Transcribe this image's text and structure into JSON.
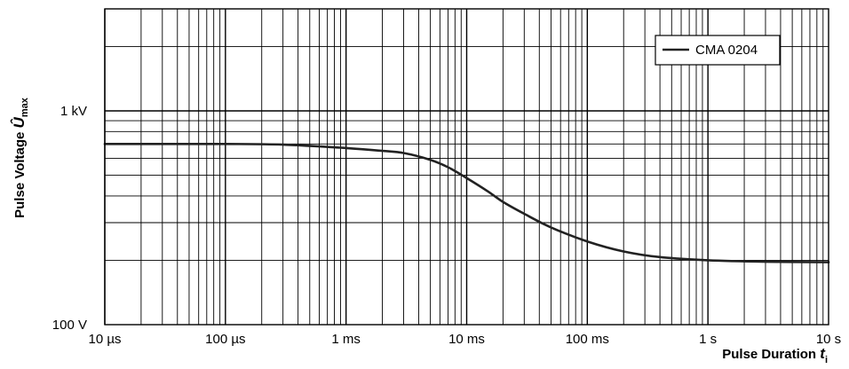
{
  "chart_data": {
    "type": "line",
    "title": "",
    "xlabel": "Pulse Duration t",
    "xlabel_main": "Pulse Duration ",
    "xlabel_var": "t",
    "xlabel_sub": "i",
    "ylabel": "Pulse Voltage Û max",
    "ylabel_main": "Pulse Voltage ",
    "ylabel_var": "Û",
    "ylabel_sub": "max",
    "x_scale": "log",
    "y_scale": "log",
    "xlim": [
      1e-05,
      10
    ],
    "ylim": [
      100,
      3000
    ],
    "grid": true,
    "legend_position": "top-right",
    "x_ticks": [
      {
        "value": 1e-05,
        "label": "10 µs"
      },
      {
        "value": 0.0001,
        "label": "100 µs"
      },
      {
        "value": 0.001,
        "label": "1 ms"
      },
      {
        "value": 0.01,
        "label": "10 ms"
      },
      {
        "value": 0.1,
        "label": "100 ms"
      },
      {
        "value": 1,
        "label": "1 s"
      },
      {
        "value": 10,
        "label": "10 s"
      }
    ],
    "y_ticks": [
      {
        "value": 100,
        "label": "100 V"
      },
      {
        "value": 1000,
        "label": "1 kV"
      }
    ],
    "series": [
      {
        "name": "CMA 0204",
        "color": "#222222",
        "points": [
          {
            "x": 1e-05,
            "y": 700
          },
          {
            "x": 3e-05,
            "y": 700
          },
          {
            "x": 0.0001,
            "y": 700
          },
          {
            "x": 0.0003,
            "y": 695
          },
          {
            "x": 0.001,
            "y": 670
          },
          {
            "x": 0.002,
            "y": 650
          },
          {
            "x": 0.003,
            "y": 635
          },
          {
            "x": 0.005,
            "y": 590
          },
          {
            "x": 0.007,
            "y": 545
          },
          {
            "x": 0.01,
            "y": 485
          },
          {
            "x": 0.015,
            "y": 420
          },
          {
            "x": 0.02,
            "y": 375
          },
          {
            "x": 0.03,
            "y": 330
          },
          {
            "x": 0.05,
            "y": 285
          },
          {
            "x": 0.1,
            "y": 245
          },
          {
            "x": 0.2,
            "y": 220
          },
          {
            "x": 0.4,
            "y": 207
          },
          {
            "x": 1,
            "y": 200
          },
          {
            "x": 3,
            "y": 197
          },
          {
            "x": 10,
            "y": 196
          }
        ]
      }
    ]
  }
}
